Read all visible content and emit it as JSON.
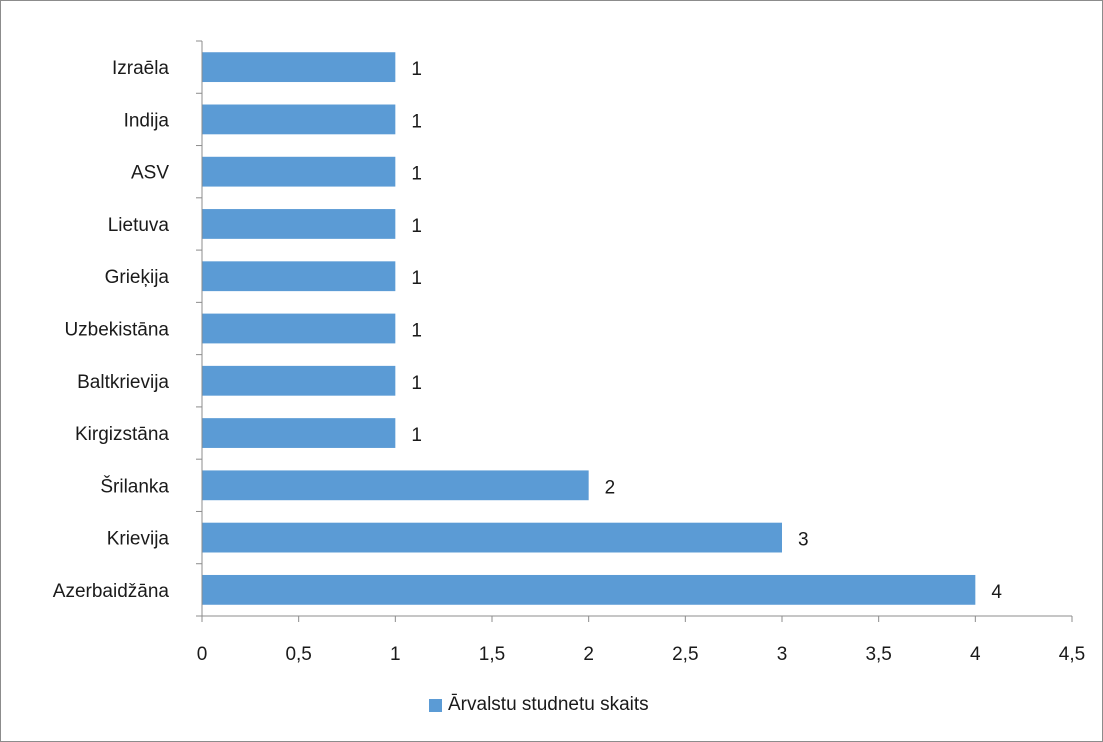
{
  "chart_data": {
    "type": "bar",
    "orientation": "horizontal",
    "categories": [
      "Azerbaidžāna",
      "Krievija",
      "Šrilanka",
      "Kirgizstāna",
      "Baltkrievija",
      "Uzbekistāna",
      "Grieķija",
      "Lietuva",
      "ASV",
      "Indija",
      "Izraēla"
    ],
    "series": [
      {
        "name": "Ārvalstu studnetu skaits",
        "values": [
          4,
          3,
          2,
          1,
          1,
          1,
          1,
          1,
          1,
          1,
          1
        ],
        "color": "#5b9bd5"
      }
    ],
    "xlim": [
      0,
      4.5
    ],
    "xticks": [
      "0",
      "0,5",
      "1",
      "1,5",
      "2",
      "2,5",
      "3",
      "3,5",
      "4",
      "4,5"
    ],
    "title": "",
    "xlabel": "",
    "ylabel": "",
    "grid": false,
    "data_labels": true,
    "legend": {
      "position": "bottom",
      "label": "Ārvalstu studnetu skaits"
    }
  }
}
